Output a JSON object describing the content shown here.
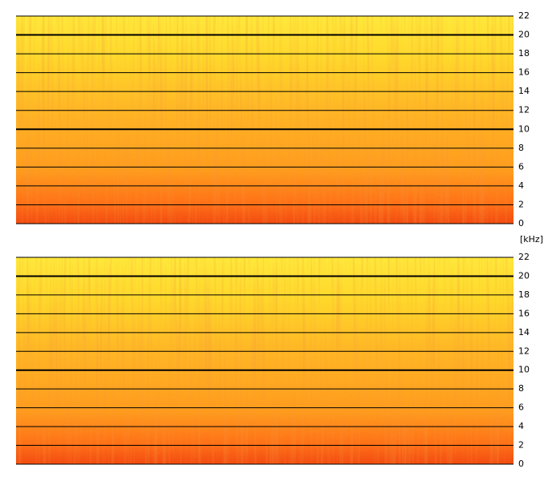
{
  "chart_data": [
    {
      "type": "spectrogram",
      "ylim": [
        0,
        22
      ],
      "yticks": [
        0,
        2,
        4,
        6,
        8,
        10,
        12,
        14,
        16,
        18,
        20,
        22
      ],
      "grid": true,
      "bold_gridlines": [
        10,
        20
      ],
      "ylabel": "[kHz]"
    },
    {
      "type": "spectrogram",
      "ylim": [
        0,
        22
      ],
      "yticks": [
        0,
        2,
        4,
        6,
        8,
        10,
        12,
        14,
        16,
        18,
        20,
        22
      ],
      "grid": true,
      "bold_gridlines": [
        10,
        20
      ]
    }
  ]
}
